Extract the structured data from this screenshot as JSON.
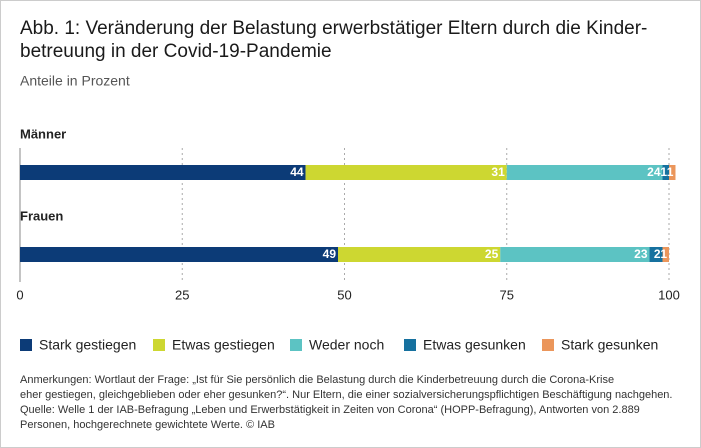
{
  "chart_data": {
    "type": "stacked-bar-horizontal",
    "title": [
      "Abb. 1: Veränderung der Belastung erwerbstätiger Eltern durch die Kinder-",
      "betreuung in der Covid-19-Pandemie"
    ],
    "subtitle": "Anteile in Prozent",
    "categories": [
      "Männer",
      "Frauen"
    ],
    "series": [
      {
        "name": "Stark gestiegen",
        "color": "#0c3b77",
        "values": [
          44,
          49
        ]
      },
      {
        "name": "Etwas gestiegen",
        "color": "#cdd731",
        "values": [
          31,
          25
        ]
      },
      {
        "name": "Weder noch",
        "color": "#5cc3c3",
        "values": [
          24,
          23
        ]
      },
      {
        "name": "Etwas gesunken",
        "color": "#16719f",
        "values": [
          1,
          2
        ]
      },
      {
        "name": "Stark gesunken",
        "color": "#eb965b",
        "values": [
          1,
          1
        ]
      }
    ],
    "xlim": [
      0,
      100
    ],
    "xticks": [
      0,
      25,
      50,
      75,
      100
    ],
    "grid": true,
    "notes": [
      "Anmerkungen: Wortlaut der Frage: „Ist für Sie persönlich die Belastung durch die Kinderbetreuung durch die Corona-Krise",
      "eher gestiegen, gleichgeblieben oder eher gesunken?“. Nur Eltern, die einer sozialversicherungspflichtigen Beschäftigung nachgehen.",
      "Quelle: Welle 1 der IAB-Befragung „Leben und Erwerbstätigkeit in Zeiten von Corona“ (HOPP-Befragung), Antworten von 2.889",
      "Personen, hochgerechnete gewichtete Werte. © IAB"
    ]
  }
}
